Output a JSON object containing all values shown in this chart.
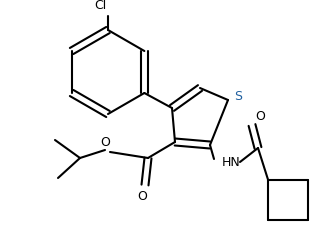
{
  "bg_color": "#ffffff",
  "line_color": "#000000",
  "s_color": "#2060a0",
  "line_width": 1.5,
  "figsize": [
    3.27,
    2.45
  ],
  "dpi": 100,
  "xlim": [
    0,
    327
  ],
  "ylim": [
    0,
    245
  ]
}
